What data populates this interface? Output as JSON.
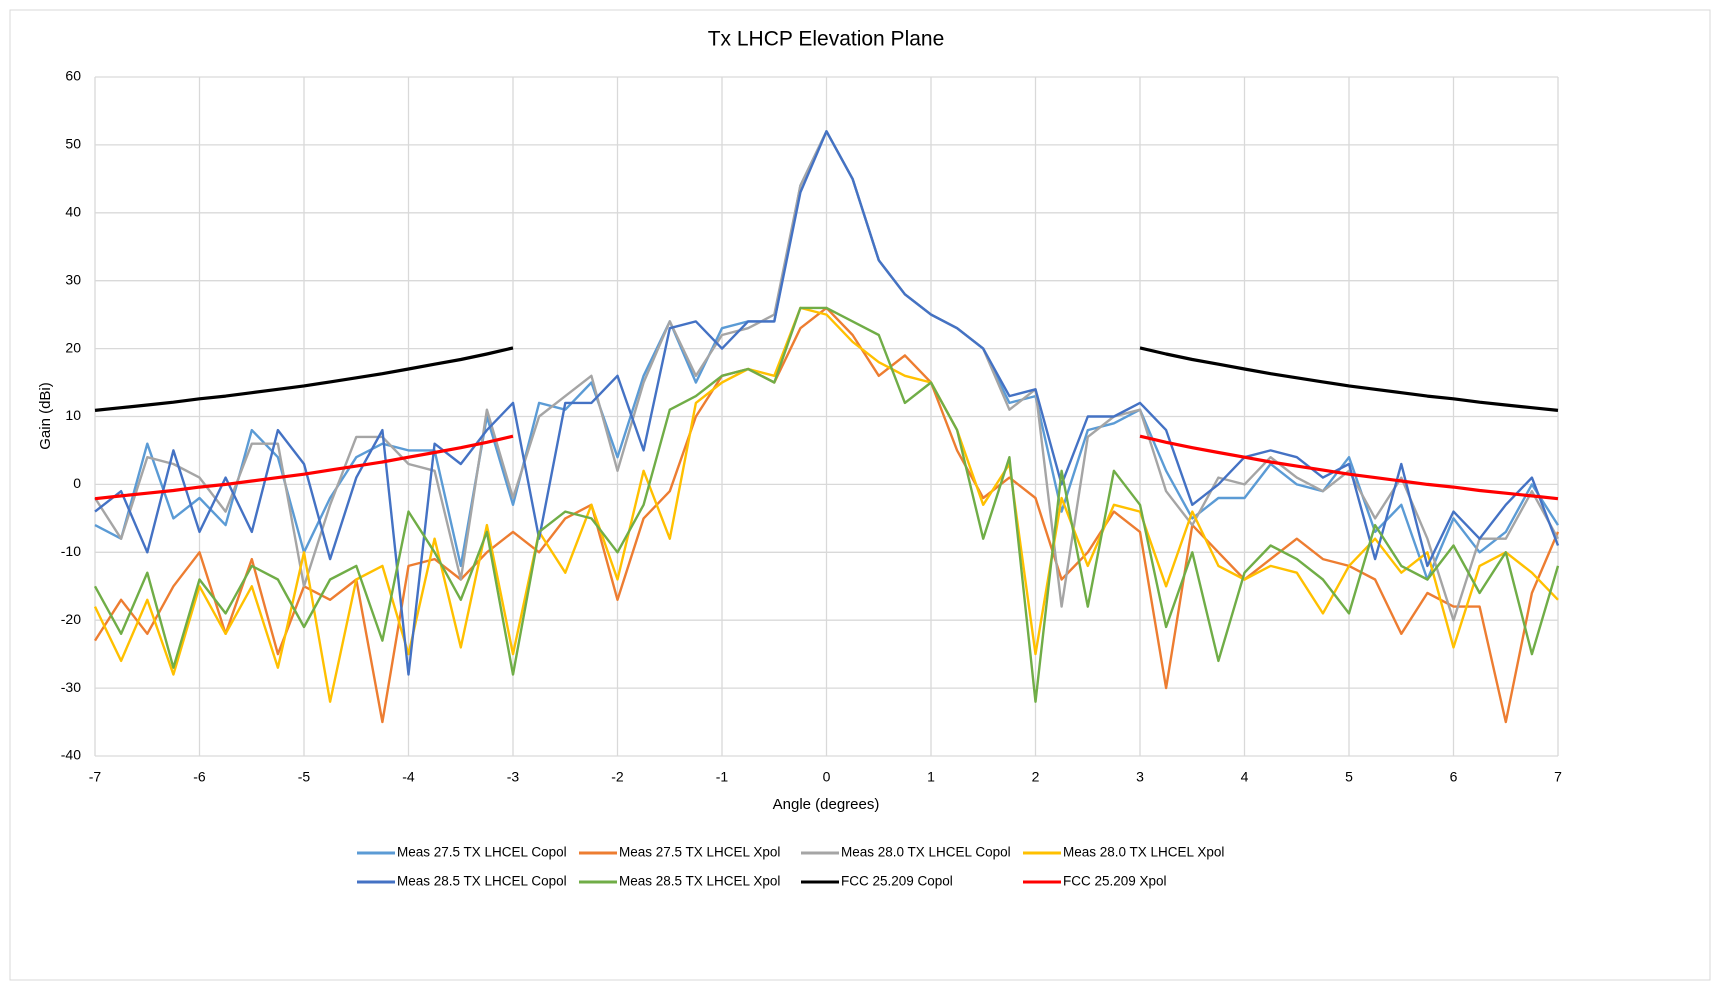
{
  "chart_data": {
    "type": "line",
    "title": "Tx LHCP Elevation Plane",
    "x_label": "Angle (degrees)",
    "y_label": "Gain (dBi)",
    "xlim": [
      -7,
      7
    ],
    "xticks": [
      -7,
      -6,
      -5,
      -4,
      -3,
      -2,
      -1,
      0,
      1,
      2,
      3,
      4,
      5,
      6,
      7
    ],
    "ylim": [
      -40,
      60
    ],
    "yticks": [
      -40,
      -30,
      -20,
      -10,
      0,
      10,
      20,
      30,
      40,
      50,
      60
    ],
    "grid": true,
    "legend": "bottom",
    "x": [
      -7,
      -6.75,
      -6.5,
      -6.25,
      -6,
      -5.75,
      -5.5,
      -5.25,
      -5,
      -4.75,
      -4.5,
      -4.25,
      -4,
      -3.75,
      -3.5,
      -3.25,
      -3,
      -2.75,
      -2.5,
      -2.25,
      -2,
      -1.75,
      -1.5,
      -1.25,
      -1,
      -0.75,
      -0.5,
      -0.25,
      0,
      0.25,
      0.5,
      0.75,
      1,
      1.25,
      1.5,
      1.75,
      2,
      2.25,
      2.5,
      2.75,
      3,
      3.25,
      3.5,
      3.75,
      4,
      4.25,
      4.5,
      4.75,
      5,
      5.25,
      5.5,
      5.75,
      6,
      6.25,
      6.5,
      6.75,
      7
    ],
    "series": [
      {
        "name": "Meas 27.5 TX LHCEL Copol",
        "color": "#5b9bd5",
        "values": [
          -6,
          -8,
          6,
          -5,
          -2,
          -6,
          8,
          4,
          -10,
          -2,
          4,
          6,
          5,
          5,
          -12,
          10,
          -3,
          12,
          11,
          15,
          4,
          16,
          24,
          15,
          23,
          24,
          24,
          44,
          52,
          45,
          33,
          28,
          25,
          23,
          20,
          12,
          13,
          -4,
          8,
          9,
          11,
          2,
          -5,
          -2,
          -2,
          3,
          0,
          -1,
          4,
          -7,
          -3,
          -14,
          -5,
          -10,
          -7,
          0,
          -6
        ]
      },
      {
        "name": "Meas 27.5 TX LHCEL Xpol",
        "color": "#ed7d31",
        "values": [
          -23,
          -17,
          -22,
          -15,
          -10,
          -22,
          -11,
          -25,
          -15,
          -17,
          -14,
          -35,
          -12,
          -11,
          -14,
          -10,
          -7,
          -10,
          -5,
          -3,
          -17,
          -5,
          -1,
          10,
          16,
          17,
          15,
          23,
          26,
          22,
          16,
          19,
          15,
          5,
          -2,
          1,
          -2,
          -14,
          -10,
          -4,
          -7,
          -30,
          -6,
          -10,
          -14,
          -11,
          -8,
          -11,
          -12,
          -14,
          -22,
          -16,
          -18,
          -18,
          -35,
          -16,
          -7
        ]
      },
      {
        "name": "Meas 28.0 TX LHCEL Copol",
        "color": "#a5a5a5",
        "values": [
          -2,
          -8,
          4,
          3,
          1,
          -4,
          6,
          6,
          -15,
          -3,
          7,
          7,
          3,
          2,
          -14,
          11,
          -2,
          10,
          13,
          16,
          2,
          15,
          24,
          16,
          22,
          23,
          25,
          44,
          52,
          45,
          33,
          28,
          25,
          23,
          20,
          11,
          14,
          -18,
          7,
          10,
          11,
          -1,
          -6,
          1,
          0,
          4,
          1,
          -1,
          2,
          -5,
          1,
          -8,
          -20,
          -8,
          -8,
          -1,
          -8
        ]
      },
      {
        "name": "Meas 28.0 TX LHCEL Xpol",
        "color": "#ffc000",
        "values": [
          -18,
          -26,
          -17,
          -28,
          -15,
          -22,
          -15,
          -27,
          -10,
          -32,
          -14,
          -12,
          -25,
          -8,
          -24,
          -6,
          -25,
          -7,
          -13,
          -3,
          -14,
          2,
          -8,
          12,
          15,
          17,
          16,
          26,
          25,
          21,
          18,
          16,
          15,
          8,
          -3,
          3,
          -25,
          -2,
          -12,
          -3,
          -4,
          -15,
          -4,
          -12,
          -14,
          -12,
          -13,
          -19,
          -12,
          -8,
          -13,
          -10,
          -24,
          -12,
          -10,
          -13,
          -17
        ]
      },
      {
        "name": "Meas 28.5 TX LHCEL Copol",
        "color": "#4472c4",
        "values": [
          -4,
          -1,
          -10,
          5,
          -7,
          1,
          -7,
          8,
          3,
          -11,
          1,
          8,
          -28,
          6,
          3,
          8,
          12,
          -8,
          12,
          12,
          16,
          5,
          23,
          24,
          20,
          24,
          24,
          43,
          52,
          45,
          33,
          28,
          25,
          23,
          20,
          13,
          14,
          0,
          10,
          10,
          12,
          8,
          -3,
          0,
          4,
          5,
          4,
          1,
          3,
          -11,
          3,
          -12,
          -4,
          -8,
          -3,
          1,
          -9
        ]
      },
      {
        "name": "Meas 28.5 TX LHCEL Xpol",
        "color": "#70ad47",
        "values": [
          -15,
          -22,
          -13,
          -27,
          -14,
          -19,
          -12,
          -14,
          -21,
          -14,
          -12,
          -23,
          -4,
          -10,
          -17,
          -7,
          -28,
          -7,
          -4,
          -5,
          -10,
          -3,
          11,
          13,
          16,
          17,
          15,
          26,
          26,
          24,
          22,
          12,
          15,
          8,
          -8,
          4,
          -32,
          2,
          -18,
          2,
          -3,
          -21,
          -10,
          -26,
          -13,
          -9,
          -11,
          -14,
          -19,
          -6,
          -12,
          -14,
          -9,
          -16,
          -10,
          -25,
          -12
        ]
      },
      {
        "name": "FCC 25.209 Copol",
        "color": "#000000",
        "values": [
          10.9,
          11.3,
          11.7,
          12.1,
          12.6,
          13.0,
          13.5,
          14.0,
          14.5,
          15.1,
          15.7,
          16.3,
          17.0,
          17.7,
          18.4,
          19.2,
          20.1,
          null,
          null,
          null,
          null,
          null,
          null,
          null,
          null,
          null,
          null,
          null,
          null,
          null,
          null,
          null,
          null,
          null,
          null,
          null,
          null,
          null,
          null,
          null,
          20.1,
          19.2,
          18.4,
          17.7,
          17.0,
          16.3,
          15.7,
          15.1,
          14.5,
          14.0,
          13.5,
          13.0,
          12.6,
          12.1,
          11.7,
          11.3,
          10.9
        ]
      },
      {
        "name": "FCC 25.209 Xpol",
        "color": "#ff0000",
        "values": [
          -2.1,
          -1.7,
          -1.3,
          -0.9,
          -0.4,
          0.0,
          0.5,
          1.0,
          1.5,
          2.1,
          2.7,
          3.3,
          4.0,
          4.7,
          5.4,
          6.2,
          7.1,
          null,
          null,
          null,
          null,
          null,
          null,
          null,
          null,
          null,
          null,
          null,
          null,
          null,
          null,
          null,
          null,
          null,
          null,
          null,
          null,
          null,
          null,
          null,
          7.1,
          6.2,
          5.4,
          4.7,
          4.0,
          3.3,
          2.7,
          2.1,
          1.5,
          1.0,
          0.5,
          0.0,
          -0.4,
          -0.9,
          -1.3,
          -1.7,
          -2.1
        ]
      }
    ]
  }
}
